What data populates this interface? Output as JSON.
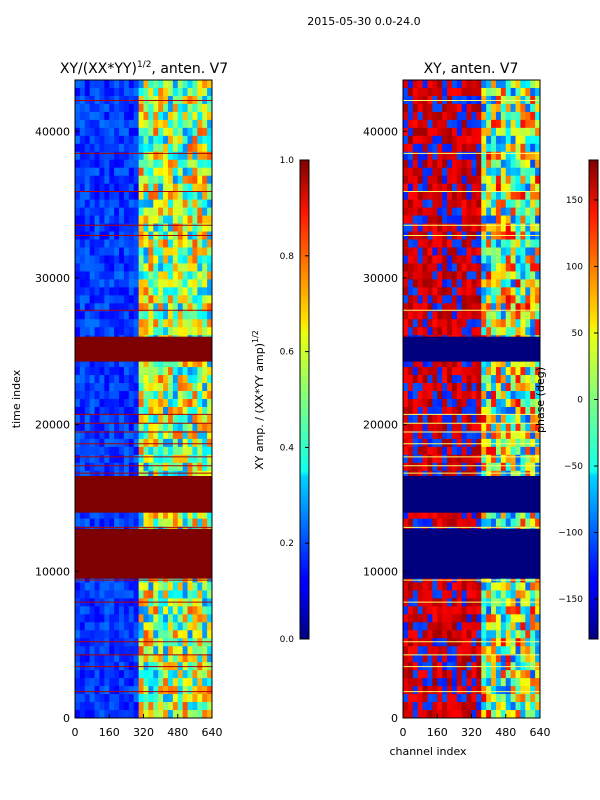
{
  "figure": {
    "suptitle": "2015-05-30 0.0-24.0"
  },
  "chart_data": [
    {
      "type": "heatmap",
      "title": "XY/(XX*YY)",
      "title_exponent": "1/2",
      "title_suffix": ", anten. V7",
      "xlabel": "",
      "ylabel": "time index",
      "xlim": [
        0,
        640
      ],
      "ylim": [
        0,
        43500
      ],
      "x_ticks": [
        0,
        160,
        320,
        480,
        640
      ],
      "y_ticks": [
        0,
        10000,
        20000,
        30000,
        40000
      ],
      "active_channels": [
        300,
        640
      ],
      "solid_bands": [
        [
          9500,
          12900
        ],
        [
          14000,
          16500
        ],
        [
          24300,
          26000
        ]
      ],
      "flag_lines": [
        1800,
        3500,
        4300,
        5200,
        7900,
        9400,
        13000,
        16700,
        17200,
        17800,
        18700,
        19500,
        20100,
        20700,
        27800,
        32900,
        33600,
        35900,
        38500,
        42100
      ],
      "colorbar": {
        "label": "XY amp. / (XX*YY amp)",
        "label_exponent": "1/2",
        "range": [
          0.0,
          1.0
        ],
        "ticks": [
          "0.0",
          "0.2",
          "0.4",
          "0.6",
          "0.8",
          "1.0"
        ]
      }
    },
    {
      "type": "heatmap",
      "title": "XY, anten. V7",
      "xlabel": "channel index",
      "ylabel": "",
      "xlim": [
        0,
        640
      ],
      "ylim": [
        0,
        43500
      ],
      "x_ticks": [
        0,
        160,
        320,
        480,
        640
      ],
      "y_ticks": [
        0,
        10000,
        20000,
        30000,
        40000
      ],
      "active_channels": [
        0,
        640
      ],
      "solid_bands": [
        [
          9500,
          12900
        ],
        [
          14000,
          16500
        ],
        [
          24300,
          26000
        ]
      ],
      "flag_lines": [
        1800,
        3500,
        4300,
        5200,
        7900,
        9400,
        13000,
        16700,
        17200,
        17800,
        18700,
        19500,
        20100,
        20700,
        27800,
        32900,
        33600,
        35900,
        38500,
        42100
      ],
      "colorbar": {
        "label": "phase (deg)",
        "range": [
          -180,
          180
        ],
        "ticks": [
          "−150",
          "−100",
          "−50",
          "0",
          "50",
          "100",
          "150"
        ]
      }
    }
  ]
}
